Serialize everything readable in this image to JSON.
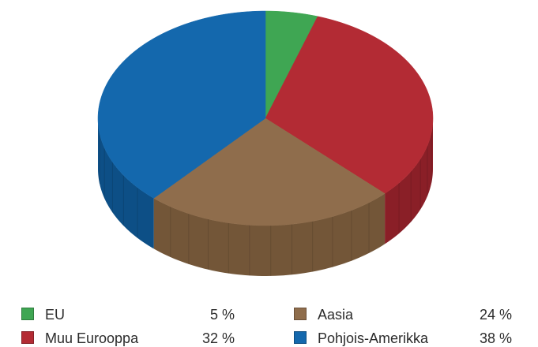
{
  "chart_data": {
    "type": "pie",
    "categories": [
      "EU",
      "Muu Eurooppa",
      "Aasia",
      "Pohjois-Amerikka"
    ],
    "values": [
      5,
      32,
      24,
      38
    ],
    "value_labels": [
      "5 %",
      "32 %",
      "24 %",
      "38 %"
    ],
    "colors": [
      "#3fa653",
      "#b32b34",
      "#8f6d4c",
      "#1468ad"
    ],
    "side_colors": [
      "#2c7a3c",
      "#8a1f27",
      "#735638",
      "#0d4f86"
    ],
    "legend_position": "bottom",
    "three_d": true
  }
}
